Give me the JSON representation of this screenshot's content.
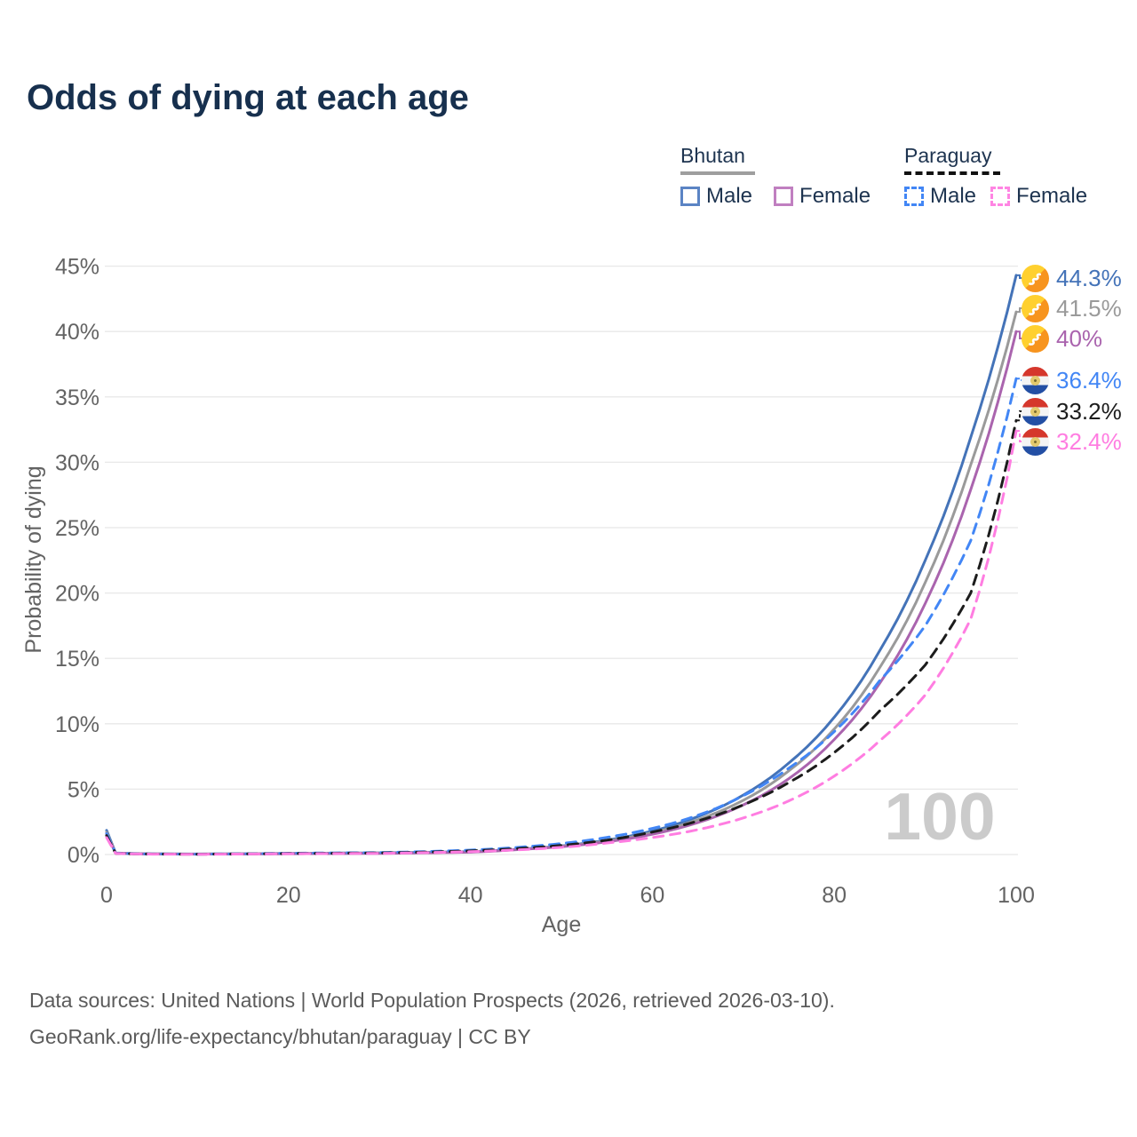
{
  "title": "Odds of dying at each age",
  "legend": {
    "groups": [
      {
        "country": "Bhutan",
        "male_label": "Male",
        "female_label": "Female"
      },
      {
        "country": "Paraguay",
        "male_label": "Male",
        "female_label": "Female"
      }
    ]
  },
  "watermark": "100",
  "footer": {
    "line1": "Data sources: United Nations | World Population Prospects (2026, retrieved 2026-03-10).",
    "line2": "GeoRank.org/life-expectancy/bhutan/paraguay | CC BY"
  },
  "chart_data": {
    "type": "line",
    "title": "Odds of dying at each age",
    "xlabel": "Age",
    "ylabel": "Probability of dying",
    "x_ticks": [
      0,
      20,
      40,
      60,
      80,
      100
    ],
    "y_tick_labels": [
      "0%",
      "5%",
      "10%",
      "15%",
      "20%",
      "25%",
      "30%",
      "35%",
      "40%",
      "45%"
    ],
    "y_ticks_pct": [
      0,
      5,
      10,
      15,
      20,
      25,
      30,
      35,
      40,
      45
    ],
    "xlim": [
      0,
      100
    ],
    "ylim_pct": [
      0,
      45
    ],
    "grid": true,
    "legend_position": "top-right",
    "ages": [
      0,
      1,
      5,
      10,
      20,
      30,
      40,
      45,
      50,
      55,
      60,
      65,
      70,
      75,
      80,
      85,
      90,
      95,
      100
    ],
    "series": [
      {
        "id": "bhutan-male",
        "country": "Bhutan",
        "sex": "Male",
        "style": "solid",
        "color": "#4473b8",
        "flag": "bhutan-flag-icon",
        "end_label": "44.3%",
        "values_pct": [
          1.85,
          0.12,
          0.05,
          0.04,
          0.09,
          0.13,
          0.22,
          0.39,
          0.66,
          1.1,
          1.8,
          2.9,
          4.55,
          7.0,
          10.5,
          15.6,
          22.5,
          31.9,
          44.3
        ]
      },
      {
        "id": "bhutan-both",
        "country": "Bhutan",
        "sex": "Both",
        "style": "solid",
        "color": "#9a9a9a",
        "flag": "bhutan-flag-icon",
        "end_label": "41.5%",
        "values_pct": [
          1.7,
          0.11,
          0.045,
          0.035,
          0.075,
          0.11,
          0.2,
          0.38,
          0.63,
          1.04,
          1.67,
          2.66,
          4.15,
          6.4,
          9.6,
          14.3,
          20.8,
          29.8,
          41.5
        ]
      },
      {
        "id": "bhutan-female",
        "country": "Bhutan",
        "sex": "Female",
        "style": "solid",
        "color": "#aa64ae",
        "flag": "bhutan-flag-icon",
        "end_label": "40%",
        "values_pct": [
          1.55,
          0.1,
          0.04,
          0.03,
          0.06,
          0.09,
          0.18,
          0.37,
          0.6,
          0.97,
          1.55,
          2.44,
          3.8,
          5.8,
          8.8,
          13.1,
          19.2,
          27.9,
          40.0
        ]
      },
      {
        "id": "paraguay-male",
        "country": "Paraguay",
        "sex": "Male",
        "style": "dashed",
        "color": "#4286f5",
        "flag": "paraguay-flag-icon",
        "end_label": "36.4%",
        "values_pct": [
          1.6,
          0.1,
          0.04,
          0.03,
          0.1,
          0.15,
          0.34,
          0.54,
          0.84,
          1.31,
          2.0,
          3.0,
          4.5,
          6.6,
          9.4,
          13.3,
          17.5,
          24.0,
          36.4
        ]
      },
      {
        "id": "paraguay-both",
        "country": "Paraguay",
        "sex": "Both",
        "style": "dashed",
        "color": "#1c1c1c",
        "flag": "paraguay-flag-icon",
        "end_label": "33.2%",
        "values_pct": [
          1.45,
          0.09,
          0.035,
          0.025,
          0.08,
          0.12,
          0.28,
          0.45,
          0.7,
          1.1,
          1.72,
          2.56,
          3.8,
          5.5,
          7.8,
          11.0,
          14.5,
          20.0,
          33.2
        ]
      },
      {
        "id": "paraguay-female",
        "country": "Paraguay",
        "sex": "Female",
        "style": "dashed",
        "color": "#ff7de1",
        "flag": "paraguay-flag-icon",
        "end_label": "32.4%",
        "values_pct": [
          1.3,
          0.08,
          0.03,
          0.02,
          0.06,
          0.09,
          0.22,
          0.35,
          0.55,
          0.88,
          1.3,
          1.9,
          2.8,
          4.1,
          6.0,
          8.7,
          12.2,
          18.0,
          32.4
        ]
      }
    ]
  }
}
